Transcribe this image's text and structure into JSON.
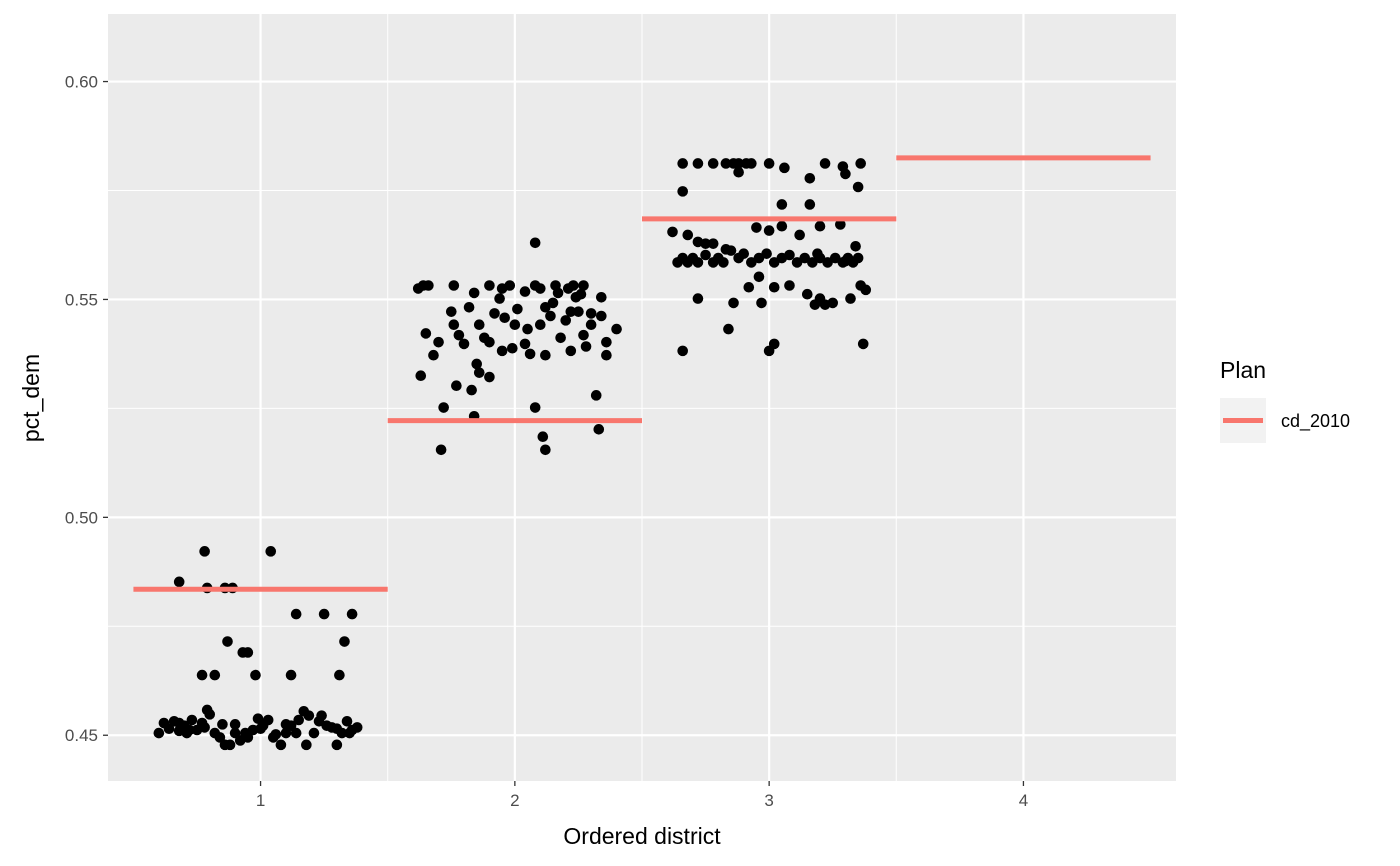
{
  "chart_data": {
    "type": "scatter",
    "xlabel": "Ordered district",
    "ylabel": "pct_dem",
    "x_ticks": [
      "1",
      "2",
      "3",
      "4"
    ],
    "y_ticks": [
      "0.45",
      "0.50",
      "0.55",
      "0.60"
    ],
    "xlim": [
      0.4,
      4.6
    ],
    "ylim": [
      0.4395,
      0.6155
    ],
    "grid": true,
    "legend": {
      "title": "Plan",
      "position": "right",
      "entries": [
        {
          "label": "cd_2010",
          "color": "#F8766D"
        }
      ]
    },
    "colors": {
      "panel": "#EBEBEB",
      "grid": "#FFFFFF",
      "points": "#000000",
      "reference": "#F8766D"
    },
    "reference_series": {
      "name": "cd_2010",
      "segments": [
        {
          "district": 1,
          "value": 0.4835
        },
        {
          "district": 2,
          "value": 0.5222
        },
        {
          "district": 3,
          "value": 0.5685
        },
        {
          "district": 4,
          "value": 0.5825
        }
      ]
    },
    "points": [
      [
        0.6,
        0.4505
      ],
      [
        0.62,
        0.4528
      ],
      [
        0.64,
        0.4515
      ],
      [
        0.66,
        0.4532
      ],
      [
        0.68,
        0.451
      ],
      [
        0.7,
        0.4522
      ],
      [
        0.71,
        0.4505
      ],
      [
        0.73,
        0.4535
      ],
      [
        0.75,
        0.4512
      ],
      [
        0.77,
        0.4528
      ],
      [
        0.79,
        0.4558
      ],
      [
        0.8,
        0.4548
      ],
      [
        0.82,
        0.4505
      ],
      [
        0.84,
        0.4495
      ],
      [
        0.86,
        0.4478
      ],
      [
        0.88,
        0.4478
      ],
      [
        0.9,
        0.4525
      ],
      [
        0.92,
        0.4488
      ],
      [
        0.94,
        0.4505
      ],
      [
        0.97,
        0.4512
      ],
      [
        0.99,
        0.4538
      ],
      [
        1.01,
        0.4522
      ],
      [
        1.03,
        0.4535
      ],
      [
        1.06,
        0.4502
      ],
      [
        1.08,
        0.4478
      ],
      [
        1.1,
        0.4505
      ],
      [
        1.12,
        0.4522
      ],
      [
        1.15,
        0.4535
      ],
      [
        1.17,
        0.4555
      ],
      [
        1.19,
        0.4545
      ],
      [
        1.21,
        0.4505
      ],
      [
        1.23,
        0.4532
      ],
      [
        1.26,
        0.4522
      ],
      [
        1.28,
        0.4518
      ],
      [
        1.3,
        0.4478
      ],
      [
        1.32,
        0.4505
      ],
      [
        1.34,
        0.4532
      ],
      [
        1.36,
        0.4512
      ],
      [
        1.38,
        0.4518
      ],
      [
        0.68,
        0.4528
      ],
      [
        0.72,
        0.4512
      ],
      [
        0.78,
        0.4518
      ],
      [
        0.85,
        0.4525
      ],
      [
        0.9,
        0.4505
      ],
      [
        0.95,
        0.4495
      ],
      [
        1.0,
        0.4515
      ],
      [
        1.05,
        0.4495
      ],
      [
        1.1,
        0.4525
      ],
      [
        1.14,
        0.4505
      ],
      [
        1.18,
        0.4478
      ],
      [
        1.24,
        0.4545
      ],
      [
        1.3,
        0.4515
      ],
      [
        1.35,
        0.4505
      ],
      [
        0.78,
        0.4922
      ],
      [
        1.04,
        0.4922
      ],
      [
        0.68,
        0.4852
      ],
      [
        0.79,
        0.4838
      ],
      [
        0.86,
        0.4838
      ],
      [
        0.89,
        0.4838
      ],
      [
        1.14,
        0.4778
      ],
      [
        1.25,
        0.4778
      ],
      [
        1.36,
        0.4778
      ],
      [
        0.87,
        0.4715
      ],
      [
        1.33,
        0.4715
      ],
      [
        0.93,
        0.469
      ],
      [
        0.95,
        0.469
      ],
      [
        0.77,
        0.4638
      ],
      [
        0.82,
        0.4638
      ],
      [
        0.98,
        0.4638
      ],
      [
        1.12,
        0.4638
      ],
      [
        1.31,
        0.4638
      ],
      [
        1.64,
        0.5532
      ],
      [
        1.66,
        0.5532
      ],
      [
        1.76,
        0.5532
      ],
      [
        1.9,
        0.5532
      ],
      [
        1.98,
        0.5532
      ],
      [
        2.08,
        0.5532
      ],
      [
        2.16,
        0.5532
      ],
      [
        2.23,
        0.5532
      ],
      [
        2.27,
        0.5532
      ],
      [
        1.62,
        0.5525
      ],
      [
        1.84,
        0.5515
      ],
      [
        1.95,
        0.5525
      ],
      [
        2.04,
        0.5518
      ],
      [
        2.1,
        0.5525
      ],
      [
        2.17,
        0.5515
      ],
      [
        2.21,
        0.5525
      ],
      [
        2.24,
        0.5505
      ],
      [
        2.34,
        0.5505
      ],
      [
        2.08,
        0.563
      ],
      [
        1.65,
        0.5422
      ],
      [
        1.7,
        0.5402
      ],
      [
        1.76,
        0.5442
      ],
      [
        1.8,
        0.5398
      ],
      [
        1.86,
        0.5442
      ],
      [
        1.9,
        0.5402
      ],
      [
        1.96,
        0.5458
      ],
      [
        2.0,
        0.5442
      ],
      [
        2.04,
        0.5398
      ],
      [
        2.1,
        0.5442
      ],
      [
        2.14,
        0.5462
      ],
      [
        2.2,
        0.5452
      ],
      [
        2.25,
        0.5472
      ],
      [
        2.3,
        0.5442
      ],
      [
        2.36,
        0.5402
      ],
      [
        2.4,
        0.5432
      ],
      [
        1.75,
        0.5472
      ],
      [
        1.82,
        0.5482
      ],
      [
        1.92,
        0.5468
      ],
      [
        2.01,
        0.5478
      ],
      [
        2.12,
        0.5482
      ],
      [
        2.22,
        0.5472
      ],
      [
        2.3,
        0.5468
      ],
      [
        1.68,
        0.5372
      ],
      [
        1.85,
        0.5352
      ],
      [
        1.95,
        0.5382
      ],
      [
        2.12,
        0.5372
      ],
      [
        2.22,
        0.5382
      ],
      [
        2.36,
        0.5372
      ],
      [
        1.63,
        0.5325
      ],
      [
        1.77,
        0.5302
      ],
      [
        1.86,
        0.5332
      ],
      [
        1.9,
        0.5322
      ],
      [
        1.83,
        0.5292
      ],
      [
        2.32,
        0.528
      ],
      [
        1.72,
        0.5252
      ],
      [
        1.84,
        0.5232
      ],
      [
        2.08,
        0.5252
      ],
      [
        2.33,
        0.5202
      ],
      [
        2.11,
        0.5185
      ],
      [
        1.71,
        0.5155
      ],
      [
        2.12,
        0.5155
      ],
      [
        1.88,
        0.5412
      ],
      [
        2.05,
        0.5432
      ],
      [
        2.18,
        0.5412
      ],
      [
        2.28,
        0.5392
      ],
      [
        1.78,
        0.5418
      ],
      [
        1.94,
        0.5502
      ],
      [
        2.15,
        0.5492
      ],
      [
        2.26,
        0.5512
      ],
      [
        2.34,
        0.5462
      ],
      [
        1.99,
        0.5388
      ],
      [
        2.06,
        0.5375
      ],
      [
        2.27,
        0.5418
      ],
      [
        2.64,
        0.5585
      ],
      [
        2.66,
        0.5595
      ],
      [
        2.68,
        0.5585
      ],
      [
        2.7,
        0.5595
      ],
      [
        2.72,
        0.5585
      ],
      [
        2.75,
        0.5602
      ],
      [
        2.78,
        0.5585
      ],
      [
        2.8,
        0.5595
      ],
      [
        2.82,
        0.5585
      ],
      [
        2.85,
        0.5612
      ],
      [
        2.88,
        0.5595
      ],
      [
        2.9,
        0.5605
      ],
      [
        2.93,
        0.5585
      ],
      [
        2.96,
        0.5595
      ],
      [
        2.99,
        0.5605
      ],
      [
        3.02,
        0.5585
      ],
      [
        3.05,
        0.5595
      ],
      [
        3.08,
        0.5602
      ],
      [
        3.11,
        0.5585
      ],
      [
        3.14,
        0.5595
      ],
      [
        3.17,
        0.5585
      ],
      [
        3.2,
        0.5595
      ],
      [
        3.23,
        0.5585
      ],
      [
        3.26,
        0.5595
      ],
      [
        3.29,
        0.5585
      ],
      [
        3.31,
        0.5595
      ],
      [
        3.33,
        0.5585
      ],
      [
        3.35,
        0.5595
      ],
      [
        3.3,
        0.5588
      ],
      [
        2.66,
        0.5812
      ],
      [
        2.72,
        0.5812
      ],
      [
        2.78,
        0.5812
      ],
      [
        2.83,
        0.5812
      ],
      [
        2.86,
        0.5812
      ],
      [
        2.88,
        0.5812
      ],
      [
        2.91,
        0.5812
      ],
      [
        2.93,
        0.5812
      ],
      [
        3.0,
        0.5812
      ],
      [
        3.22,
        0.5812
      ],
      [
        3.29,
        0.5805
      ],
      [
        3.36,
        0.5812
      ],
      [
        3.06,
        0.5802
      ],
      [
        2.88,
        0.5792
      ],
      [
        3.16,
        0.5778
      ],
      [
        3.3,
        0.5788
      ],
      [
        2.66,
        0.5748
      ],
      [
        3.35,
        0.5758
      ],
      [
        3.05,
        0.5718
      ],
      [
        3.16,
        0.5718
      ],
      [
        2.62,
        0.5655
      ],
      [
        2.68,
        0.5648
      ],
      [
        2.72,
        0.5632
      ],
      [
        2.75,
        0.5628
      ],
      [
        2.78,
        0.5628
      ],
      [
        2.83,
        0.5615
      ],
      [
        2.95,
        0.5665
      ],
      [
        3.0,
        0.5658
      ],
      [
        3.05,
        0.5668
      ],
      [
        3.12,
        0.5648
      ],
      [
        3.2,
        0.5668
      ],
      [
        3.28,
        0.5672
      ],
      [
        3.34,
        0.5622
      ],
      [
        2.96,
        0.5552
      ],
      [
        2.92,
        0.5528
      ],
      [
        3.02,
        0.5528
      ],
      [
        3.08,
        0.5532
      ],
      [
        3.15,
        0.5512
      ],
      [
        3.2,
        0.5502
      ],
      [
        3.25,
        0.5492
      ],
      [
        3.32,
        0.5502
      ],
      [
        3.36,
        0.5532
      ],
      [
        3.38,
        0.5522
      ],
      [
        2.72,
        0.5502
      ],
      [
        2.86,
        0.5492
      ],
      [
        2.97,
        0.5492
      ],
      [
        3.18,
        0.5488
      ],
      [
        3.22,
        0.5488
      ],
      [
        2.84,
        0.5432
      ],
      [
        2.66,
        0.5382
      ],
      [
        3.0,
        0.5382
      ],
      [
        3.02,
        0.5398
      ],
      [
        3.37,
        0.5398
      ],
      [
        3.19,
        0.5605
      ]
    ]
  }
}
